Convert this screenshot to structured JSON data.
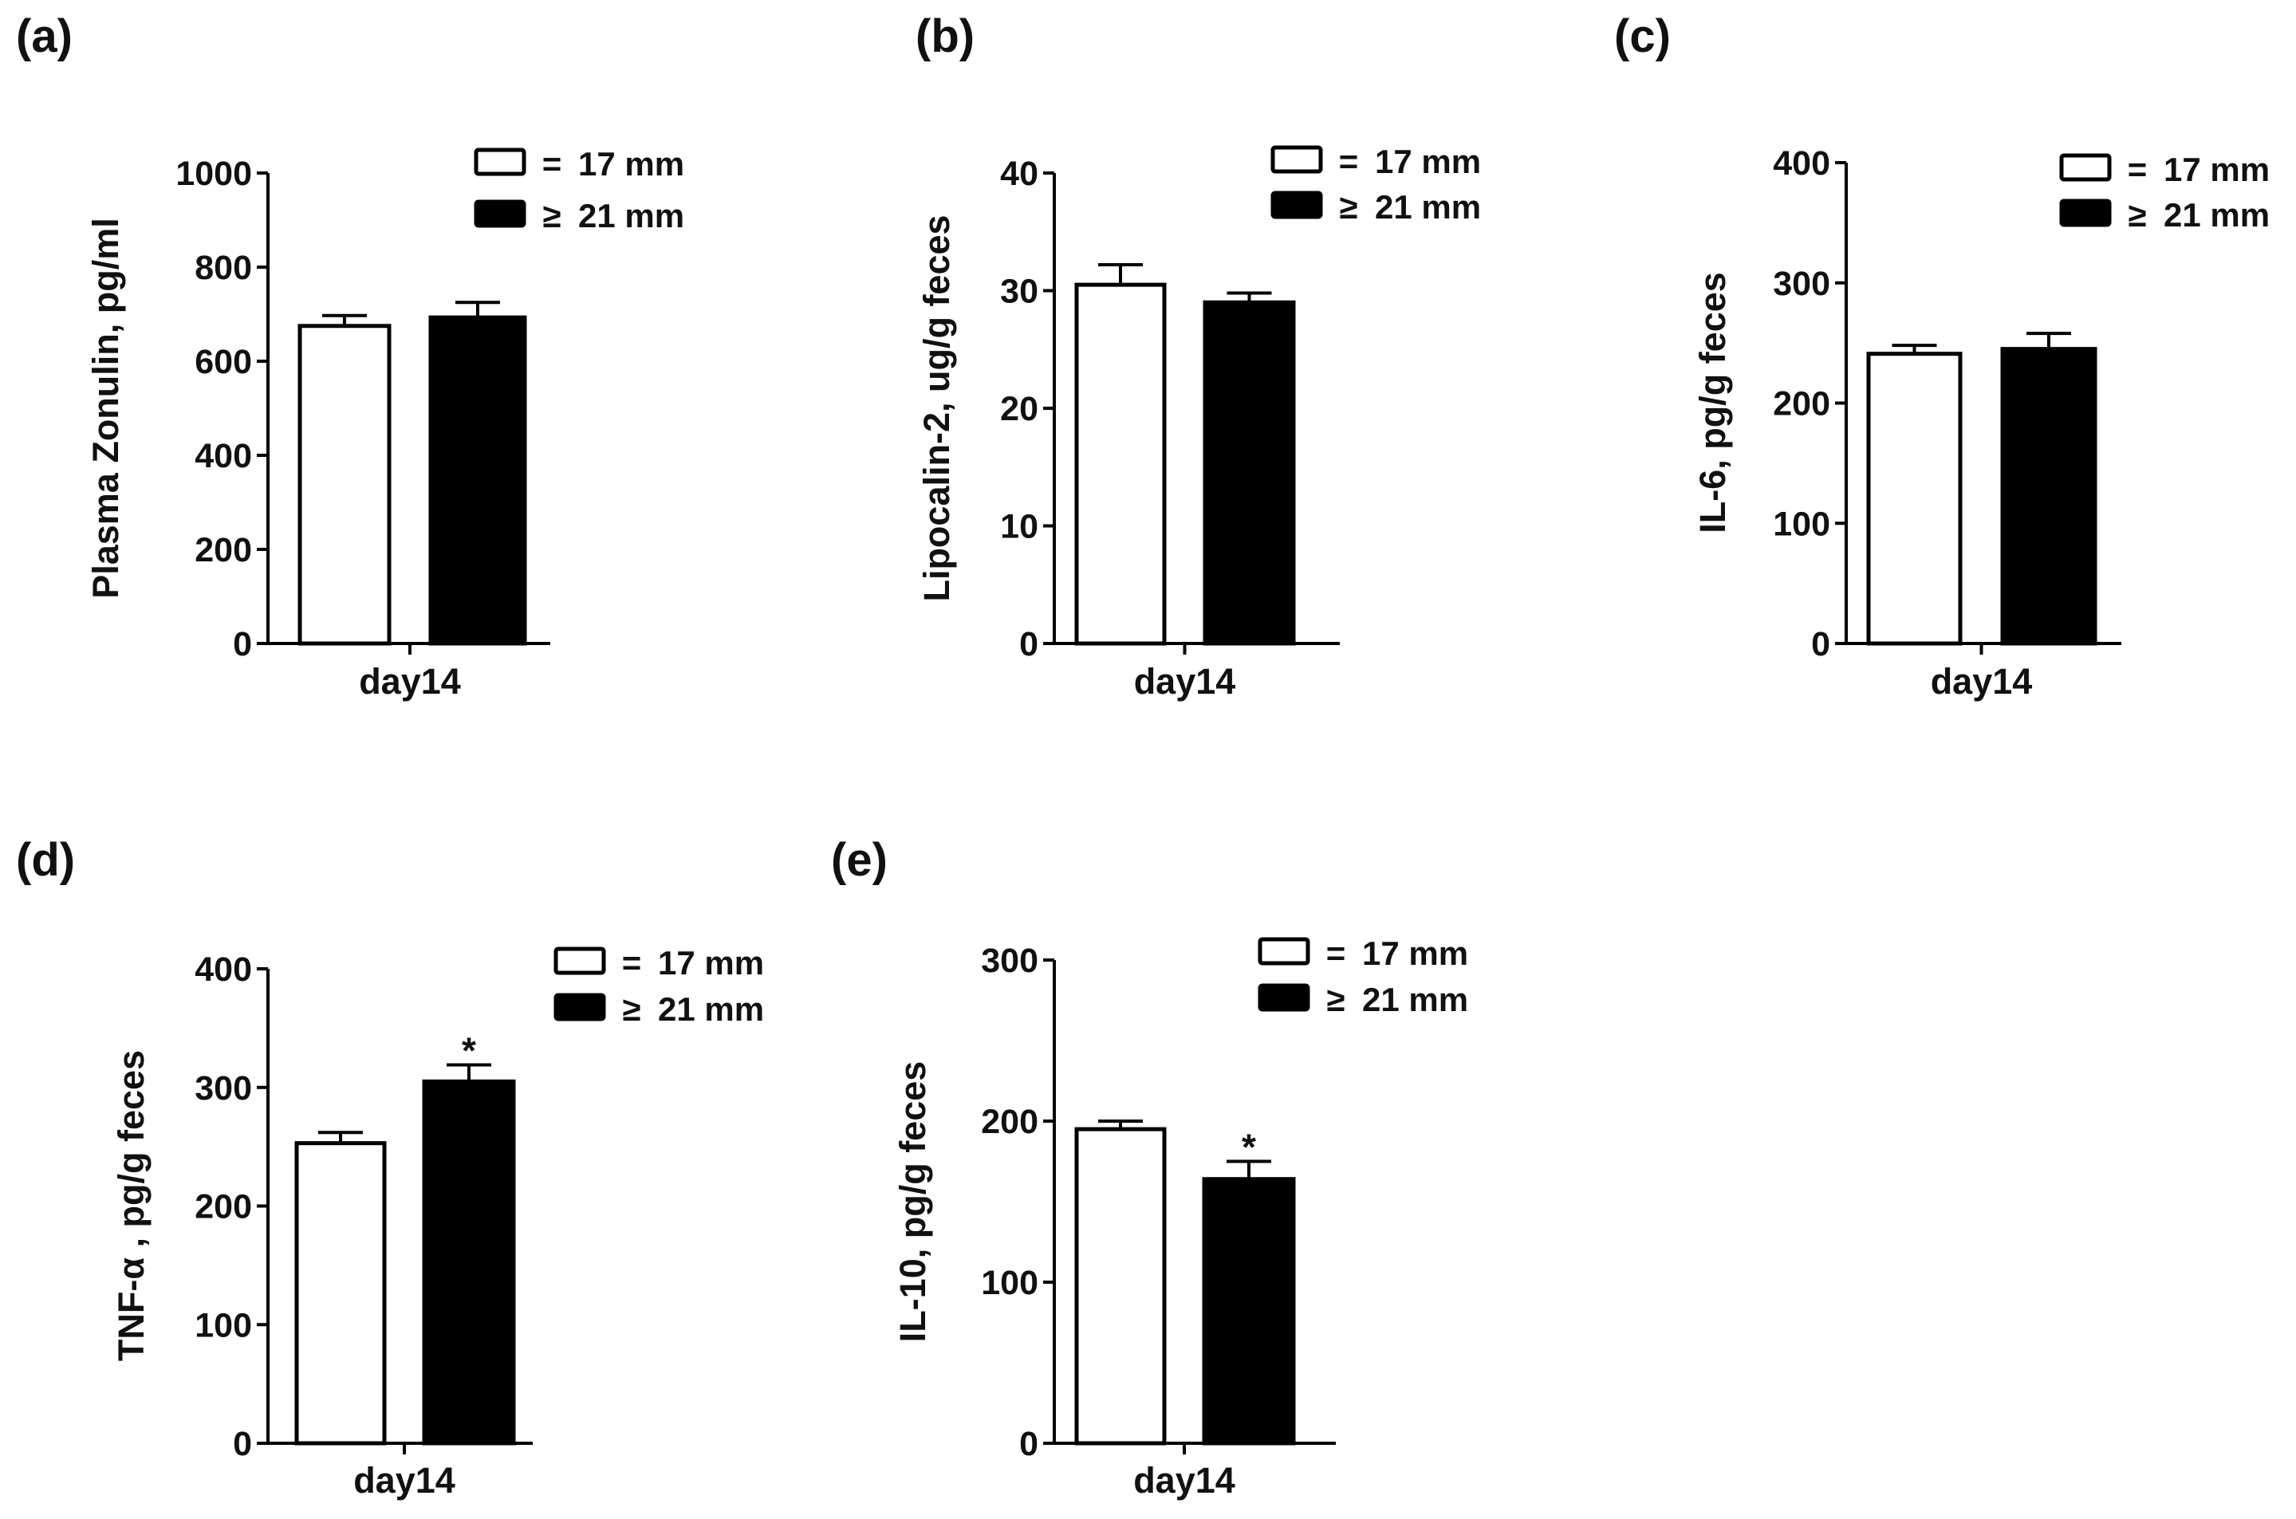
{
  "figure": {
    "legend": {
      "entries": [
        {
          "symbol": "=",
          "label": "17 mm",
          "fill": "#ffffff"
        },
        {
          "symbol": "≥",
          "label": "21 mm",
          "fill": "#000000"
        }
      ]
    }
  },
  "colors": {
    "open_bar": "#ffffff",
    "filled_bar": "#000000",
    "axis": "#000000"
  },
  "chart_data": [
    {
      "panel": "(a)",
      "type": "bar",
      "ylabel": "Plasma Zonulin, pg/ml",
      "categories": [
        "day14"
      ],
      "ylim": [
        0,
        1000
      ],
      "yticks": [
        0,
        200,
        400,
        600,
        800,
        1000
      ],
      "series": [
        {
          "name": "= 17 mm",
          "values": [
            675
          ],
          "errors": [
            22
          ],
          "significance": [
            ""
          ]
        },
        {
          "name": "≥ 21 mm",
          "values": [
            693
          ],
          "errors": [
            32
          ],
          "significance": [
            ""
          ]
        }
      ]
    },
    {
      "panel": "(b)",
      "type": "bar",
      "ylabel": "Lipocalin-2, ug/g feces",
      "categories": [
        "day14"
      ],
      "ylim": [
        0,
        40
      ],
      "yticks": [
        0,
        10,
        20,
        30,
        40
      ],
      "series": [
        {
          "name": "= 17 mm",
          "values": [
            30.5
          ],
          "errors": [
            1.7
          ],
          "significance": [
            ""
          ]
        },
        {
          "name": "≥ 21 mm",
          "values": [
            29.0
          ],
          "errors": [
            0.8
          ],
          "significance": [
            ""
          ]
        }
      ]
    },
    {
      "panel": "(c)",
      "type": "bar",
      "ylabel": "IL-6, pg/g feces",
      "categories": [
        "day14"
      ],
      "ylim": [
        0,
        400
      ],
      "yticks": [
        0,
        100,
        200,
        300,
        400
      ],
      "series": [
        {
          "name": "= 17 mm",
          "values": [
            241
          ],
          "errors": [
            7
          ],
          "significance": [
            ""
          ]
        },
        {
          "name": "≥ 21 mm",
          "values": [
            245
          ],
          "errors": [
            13
          ],
          "significance": [
            ""
          ]
        }
      ]
    },
    {
      "panel": "(d)",
      "type": "bar",
      "ylabel": "TNF-α , pg/g feces",
      "categories": [
        "day14"
      ],
      "ylim": [
        0,
        400
      ],
      "yticks": [
        0,
        100,
        200,
        300,
        400
      ],
      "series": [
        {
          "name": "= 17 mm",
          "values": [
            253
          ],
          "errors": [
            9
          ],
          "significance": [
            ""
          ]
        },
        {
          "name": "≥ 21 mm",
          "values": [
            305
          ],
          "errors": [
            14
          ],
          "significance": [
            "*"
          ]
        }
      ]
    },
    {
      "panel": "(e)",
      "type": "bar",
      "ylabel": "IL-10, pg/g feces",
      "categories": [
        "day14"
      ],
      "ylim": [
        0,
        300
      ],
      "yticks": [
        0,
        100,
        200,
        300
      ],
      "series": [
        {
          "name": "= 17 mm",
          "values": [
            195
          ],
          "errors": [
            5
          ],
          "significance": [
            ""
          ]
        },
        {
          "name": "≥ 21 mm",
          "values": [
            164
          ],
          "errors": [
            11
          ],
          "significance": [
            "*"
          ]
        }
      ]
    }
  ]
}
